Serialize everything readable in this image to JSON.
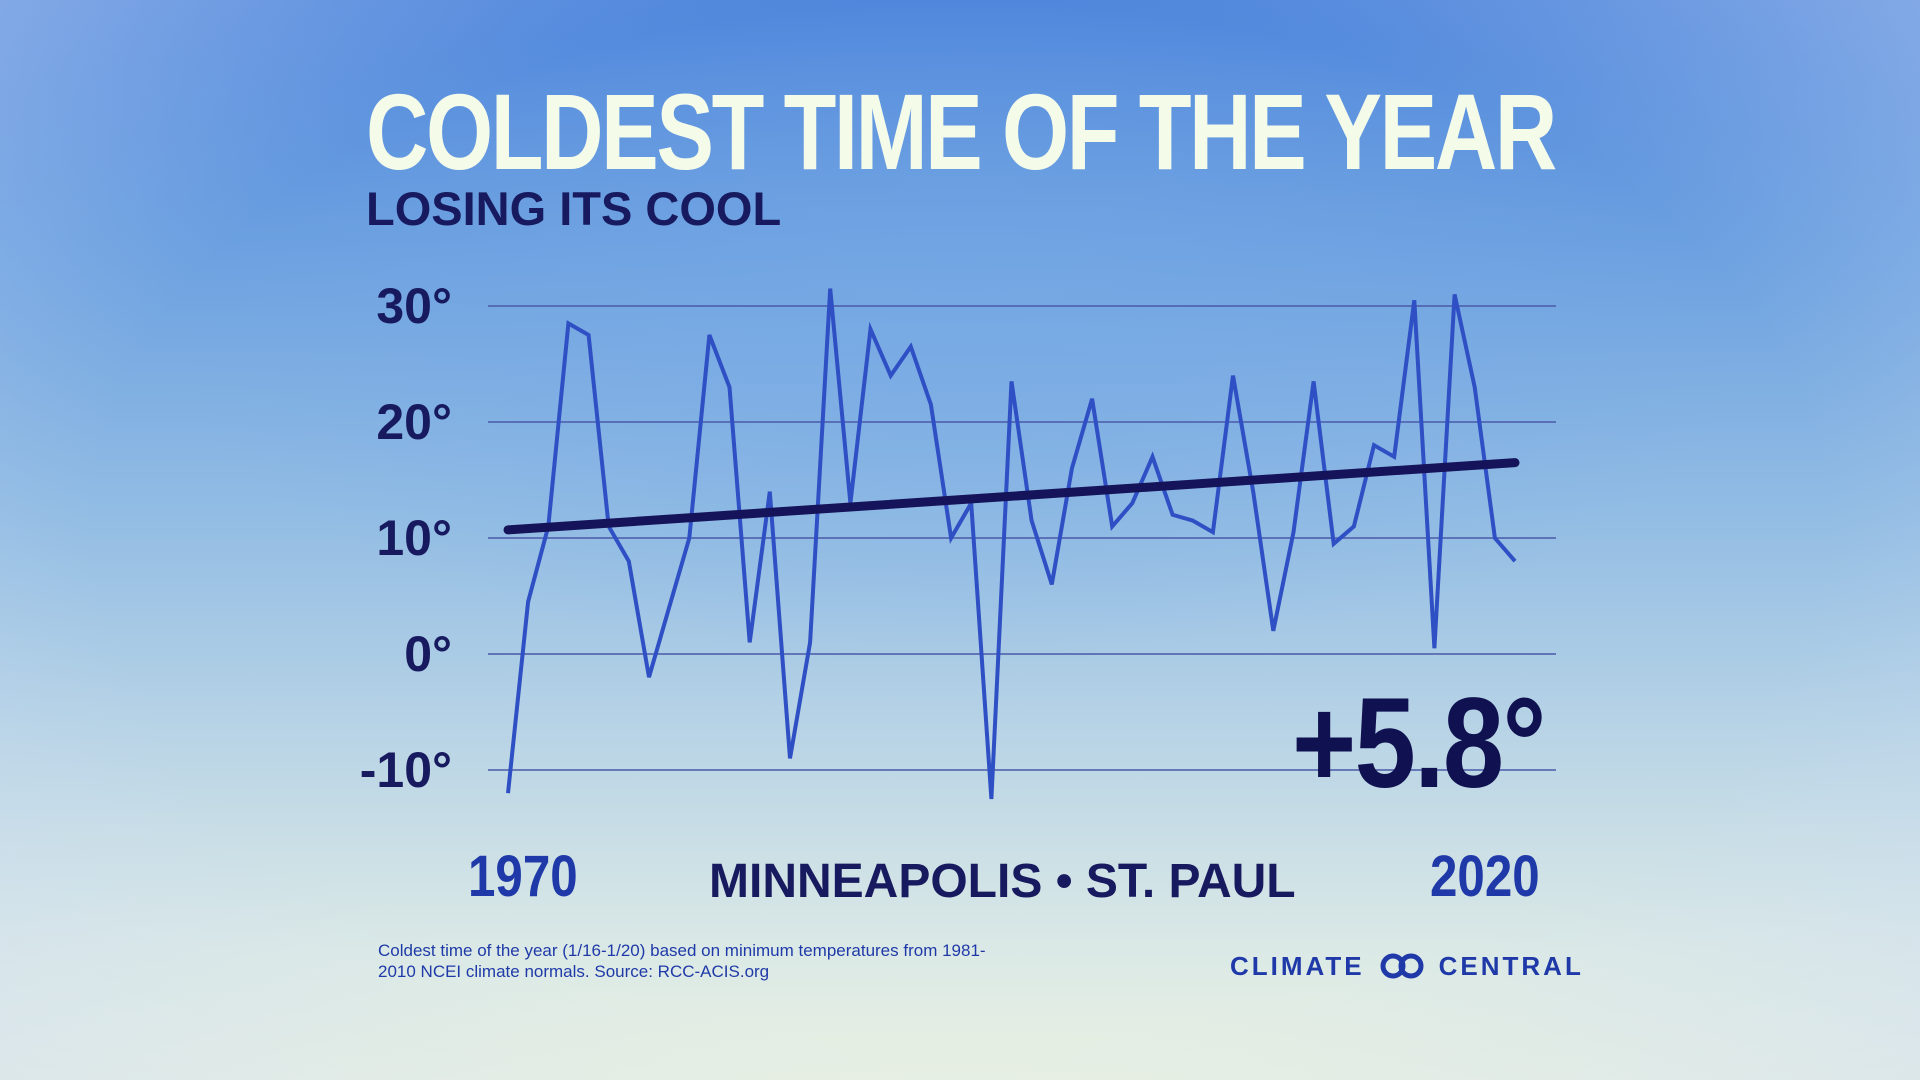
{
  "title": "COLDEST TIME OF THE YEAR",
  "subtitle": "LOSING ITS COOL",
  "location": "MINNEAPOLIS • ST. PAUL",
  "change_label": "+5.8°",
  "footnote": "Coldest time of the year (1/16-1/20) based on minimum temperatures from 1981-2010 NCEI climate normals. Source: RCC-ACIS.org",
  "logo": {
    "text_left": "CLIMATE",
    "text_right": "CENTRAL",
    "icon": "linked-rings-icon"
  },
  "colors": {
    "series": "#2f4fc4",
    "trend": "#15145a",
    "grid": "#4b5aa8",
    "title": "#f4fbe9",
    "accent": "#171a5e"
  },
  "chart_data": {
    "type": "line",
    "title": "COLDEST TIME OF THE YEAR",
    "subtitle": "LOSING ITS COOL",
    "x_tick_labels": [
      "1970",
      "2020"
    ],
    "y_tick_labels": [
      "30°",
      "20°",
      "10°",
      "0°",
      "-10°"
    ],
    "y_ticks": [
      30,
      20,
      10,
      0,
      -10
    ],
    "xlim": [
      1970,
      2020
    ],
    "ylim": [
      -12,
      32
    ],
    "grid": true,
    "x": [
      1970,
      1971,
      1972,
      1973,
      1974,
      1975,
      1976,
      1977,
      1978,
      1979,
      1980,
      1981,
      1982,
      1983,
      1984,
      1985,
      1986,
      1987,
      1988,
      1989,
      1990,
      1991,
      1992,
      1993,
      1994,
      1995,
      1996,
      1997,
      1998,
      1999,
      2000,
      2001,
      2002,
      2003,
      2004,
      2005,
      2006,
      2007,
      2008,
      2009,
      2010,
      2011,
      2012,
      2013,
      2014,
      2015,
      2016,
      2017,
      2018,
      2019,
      2020
    ],
    "series": [
      {
        "values": [
          -12,
          4.5,
          11,
          28.5,
          27.5,
          11,
          8,
          -2,
          4,
          10,
          27.5,
          23,
          1,
          14,
          -9,
          1,
          31.5,
          13,
          28,
          24,
          26.5,
          21.5,
          10,
          13,
          -12.5,
          23.5,
          11.5,
          6,
          16,
          22,
          11,
          13,
          17,
          12,
          11.5,
          10.5,
          24,
          14,
          2,
          10.5,
          23.5,
          9.5,
          11,
          18,
          17,
          30.5,
          0.5,
          31,
          23,
          10,
          8
        ]
      },
      {
        "name": "",
        "type": "trend",
        "values": [
          10.7,
          16.5
        ],
        "x": [
          1970,
          2020
        ]
      }
    ]
  }
}
